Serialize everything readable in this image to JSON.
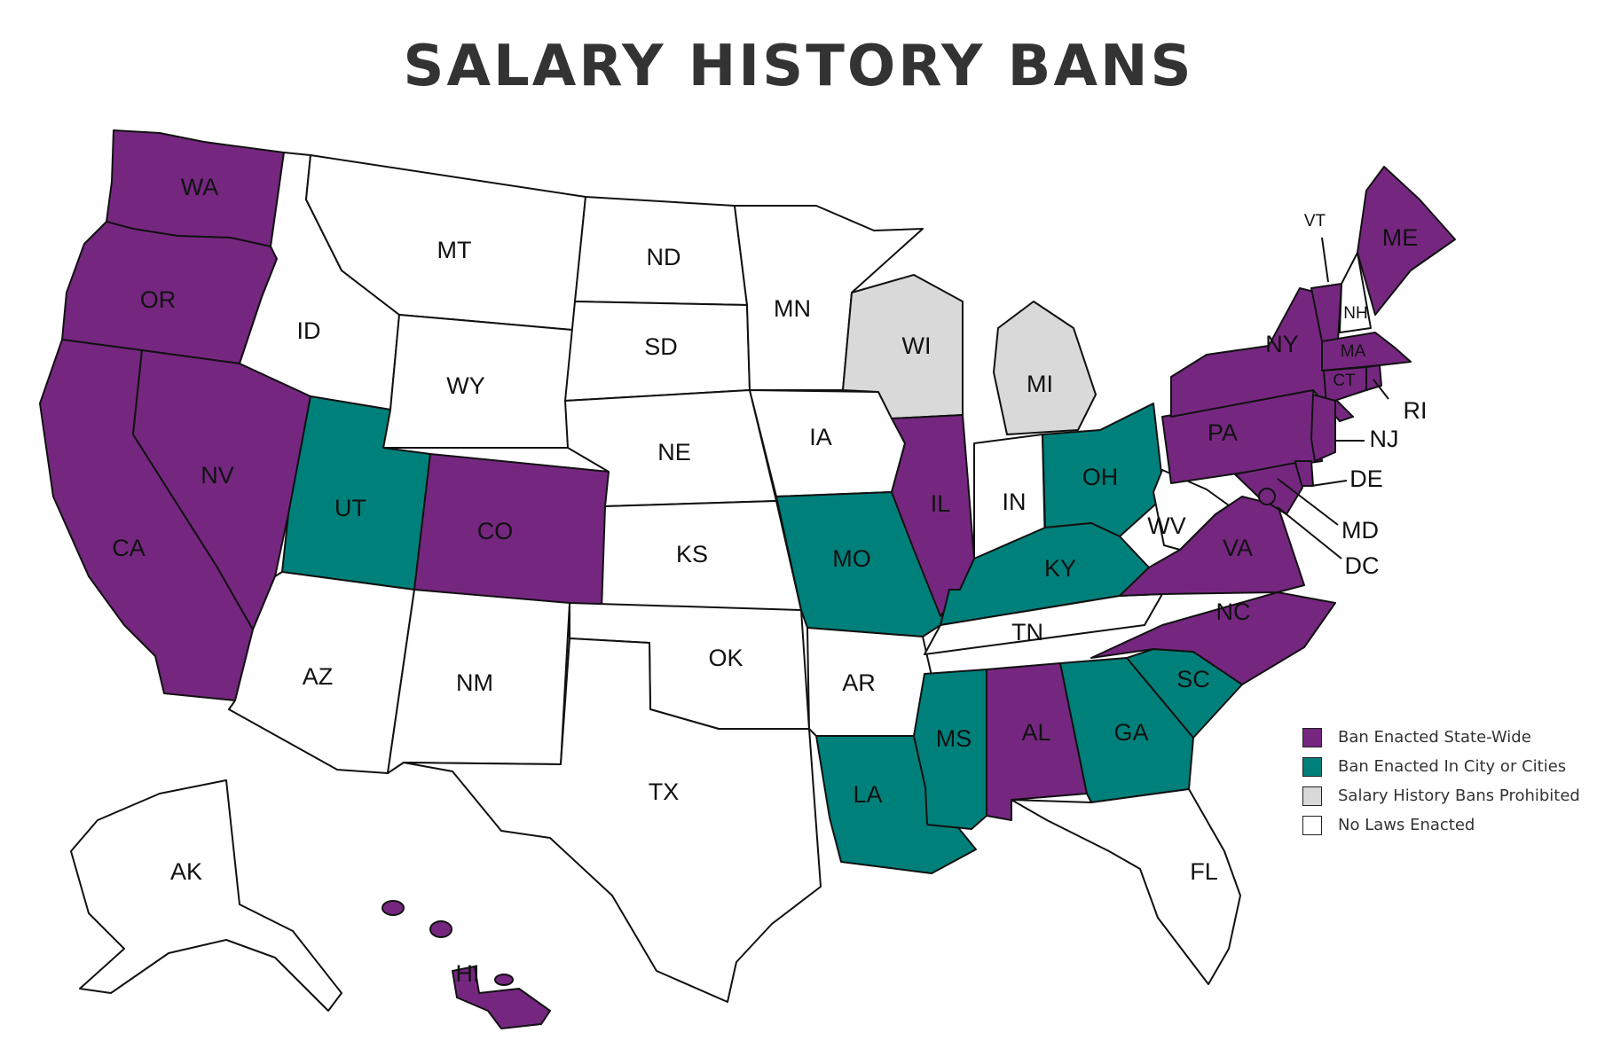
{
  "title": "SALARY HISTORY BANS",
  "colors": {
    "ban_statewide": "#752780",
    "ban_city": "#00807a",
    "prohibited": "#d9d9d9",
    "none": "#ffffff"
  },
  "legend": [
    {
      "status": "ban_statewide",
      "label": "Ban Enacted State-Wide"
    },
    {
      "status": "ban_city",
      "label": "Ban Enacted In City or Cities"
    },
    {
      "status": "prohibited",
      "label": "Salary History Bans Prohibited"
    },
    {
      "status": "none",
      "label": "No Laws Enacted"
    }
  ],
  "states": [
    {
      "abbr": "WA",
      "status": "ban_statewide"
    },
    {
      "abbr": "OR",
      "status": "ban_statewide"
    },
    {
      "abbr": "CA",
      "status": "ban_statewide"
    },
    {
      "abbr": "NV",
      "status": "ban_statewide"
    },
    {
      "abbr": "ID",
      "status": "none"
    },
    {
      "abbr": "MT",
      "status": "none"
    },
    {
      "abbr": "WY",
      "status": "none"
    },
    {
      "abbr": "UT",
      "status": "ban_city"
    },
    {
      "abbr": "CO",
      "status": "ban_statewide"
    },
    {
      "abbr": "AZ",
      "status": "none"
    },
    {
      "abbr": "NM",
      "status": "none"
    },
    {
      "abbr": "ND",
      "status": "none"
    },
    {
      "abbr": "SD",
      "status": "none"
    },
    {
      "abbr": "NE",
      "status": "none"
    },
    {
      "abbr": "KS",
      "status": "none"
    },
    {
      "abbr": "OK",
      "status": "none"
    },
    {
      "abbr": "TX",
      "status": "none"
    },
    {
      "abbr": "MN",
      "status": "none"
    },
    {
      "abbr": "IA",
      "status": "none"
    },
    {
      "abbr": "MO",
      "status": "ban_city"
    },
    {
      "abbr": "AR",
      "status": "none"
    },
    {
      "abbr": "LA",
      "status": "ban_city"
    },
    {
      "abbr": "WI",
      "status": "prohibited"
    },
    {
      "abbr": "MI",
      "status": "prohibited"
    },
    {
      "abbr": "IL",
      "status": "ban_statewide"
    },
    {
      "abbr": "IN",
      "status": "none"
    },
    {
      "abbr": "OH",
      "status": "ban_city"
    },
    {
      "abbr": "KY",
      "status": "ban_city"
    },
    {
      "abbr": "TN",
      "status": "none"
    },
    {
      "abbr": "MS",
      "status": "ban_city"
    },
    {
      "abbr": "AL",
      "status": "ban_statewide"
    },
    {
      "abbr": "GA",
      "status": "ban_city"
    },
    {
      "abbr": "FL",
      "status": "none"
    },
    {
      "abbr": "SC",
      "status": "ban_city"
    },
    {
      "abbr": "NC",
      "status": "ban_statewide"
    },
    {
      "abbr": "VA",
      "status": "ban_statewide"
    },
    {
      "abbr": "WV",
      "status": "none"
    },
    {
      "abbr": "PA",
      "status": "ban_statewide"
    },
    {
      "abbr": "NY",
      "status": "ban_statewide"
    },
    {
      "abbr": "VT",
      "status": "ban_statewide"
    },
    {
      "abbr": "NH",
      "status": "none"
    },
    {
      "abbr": "ME",
      "status": "ban_statewide"
    },
    {
      "abbr": "MA",
      "status": "ban_statewide"
    },
    {
      "abbr": "CT",
      "status": "ban_statewide"
    },
    {
      "abbr": "RI",
      "status": "ban_statewide"
    },
    {
      "abbr": "NJ",
      "status": "ban_statewide"
    },
    {
      "abbr": "DE",
      "status": "ban_statewide"
    },
    {
      "abbr": "MD",
      "status": "ban_statewide"
    },
    {
      "abbr": "DC",
      "status": "ban_statewide"
    },
    {
      "abbr": "AK",
      "status": "none"
    },
    {
      "abbr": "HI",
      "status": "ban_statewide"
    }
  ]
}
